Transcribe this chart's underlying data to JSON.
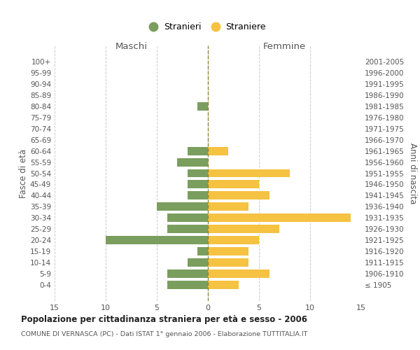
{
  "age_groups": [
    "100+",
    "95-99",
    "90-94",
    "85-89",
    "80-84",
    "75-79",
    "70-74",
    "65-69",
    "60-64",
    "55-59",
    "50-54",
    "45-49",
    "40-44",
    "35-39",
    "30-34",
    "25-29",
    "20-24",
    "15-19",
    "10-14",
    "5-9",
    "0-4"
  ],
  "birth_years": [
    "≤ 1905",
    "1906-1910",
    "1911-1915",
    "1916-1920",
    "1921-1925",
    "1926-1930",
    "1931-1935",
    "1936-1940",
    "1941-1945",
    "1946-1950",
    "1951-1955",
    "1956-1960",
    "1961-1965",
    "1966-1970",
    "1971-1975",
    "1976-1980",
    "1981-1985",
    "1986-1990",
    "1991-1995",
    "1996-2000",
    "2001-2005"
  ],
  "maschi": [
    0,
    0,
    0,
    0,
    1,
    0,
    0,
    0,
    2,
    3,
    2,
    2,
    2,
    5,
    4,
    4,
    10,
    1,
    2,
    4,
    4
  ],
  "femmine": [
    0,
    0,
    0,
    0,
    0,
    0,
    0,
    0,
    2,
    0,
    8,
    5,
    6,
    4,
    14,
    7,
    5,
    4,
    4,
    6,
    3
  ],
  "maschi_color": "#7a9e5e",
  "femmine_color": "#f5c242",
  "background_color": "#ffffff",
  "grid_color": "#cccccc",
  "title": "Popolazione per cittadinanza straniera per età e sesso - 2006",
  "subtitle": "COMUNE DI VERNASCA (PC) - Dati ISTAT 1° gennaio 2006 - Elaborazione TUTTITALIA.IT",
  "xlabel_left": "Maschi",
  "xlabel_right": "Femmine",
  "ylabel_left": "Fasce di età",
  "ylabel_right": "Anni di nascita",
  "legend_stranieri": "Stranieri",
  "legend_straniere": "Straniere",
  "xlim": 15,
  "xticks": [
    -15,
    -10,
    -5,
    0,
    5,
    10,
    15
  ],
  "xtick_labels": [
    "15",
    "10",
    "5",
    "0",
    "5",
    "10",
    "15"
  ]
}
